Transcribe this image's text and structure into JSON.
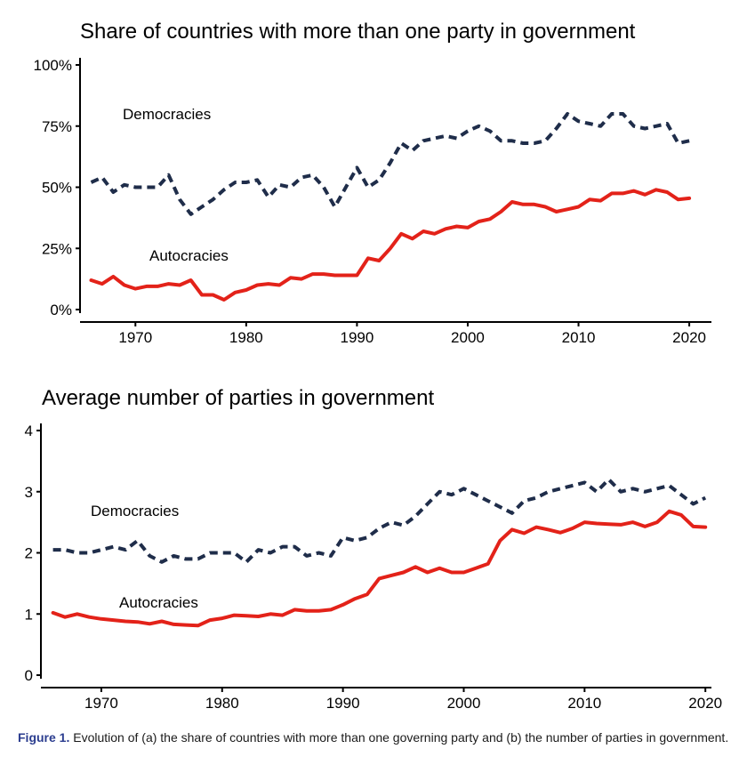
{
  "chart_data": [
    {
      "type": "line",
      "title": "Share of countries with more than one party in government",
      "xlim": [
        1965,
        2022
      ],
      "ylim": [
        0,
        100
      ],
      "x_ticks": [
        1970,
        1980,
        1990,
        2000,
        2010,
        2020
      ],
      "y_ticks": [
        0,
        25,
        50,
        75,
        100
      ],
      "y_tick_labels": [
        "0%",
        "25%",
        "50%",
        "75%",
        "100%"
      ],
      "series": [
        {
          "name": "Democracies",
          "style": "dashed",
          "color": "#1f2d4a",
          "x": [
            1966,
            1967,
            1968,
            1969,
            1970,
            1971,
            1972,
            1973,
            1974,
            1975,
            1976,
            1977,
            1978,
            1979,
            1980,
            1981,
            1982,
            1983,
            1984,
            1985,
            1986,
            1987,
            1988,
            1989,
            1990,
            1991,
            1992,
            1993,
            1994,
            1995,
            1996,
            1997,
            1998,
            1999,
            2000,
            2001,
            2002,
            2003,
            2004,
            2005,
            2006,
            2007,
            2008,
            2009,
            2010,
            2011,
            2012,
            2013,
            2014,
            2015,
            2016,
            2017,
            2018,
            2019,
            2020
          ],
          "values": [
            52,
            54,
            48,
            51,
            50,
            50,
            50,
            55,
            45,
            39,
            42,
            45,
            49,
            52,
            52,
            53,
            46,
            51,
            50,
            54,
            55,
            50,
            42,
            50,
            58,
            50,
            53,
            60,
            68,
            65,
            69,
            70,
            71,
            70,
            73,
            75,
            73,
            69,
            69,
            68,
            68,
            69,
            74,
            80,
            77,
            76,
            75,
            80,
            80,
            75,
            74,
            75,
            76,
            68,
            69
          ]
        },
        {
          "name": "Autocracies",
          "style": "solid",
          "color": "#e32219",
          "x": [
            1966,
            1967,
            1968,
            1969,
            1970,
            1971,
            1972,
            1973,
            1974,
            1975,
            1976,
            1977,
            1978,
            1979,
            1980,
            1981,
            1982,
            1983,
            1984,
            1985,
            1986,
            1987,
            1988,
            1989,
            1990,
            1991,
            1992,
            1993,
            1994,
            1995,
            1996,
            1997,
            1998,
            1999,
            2000,
            2001,
            2002,
            2003,
            2004,
            2005,
            2006,
            2007,
            2008,
            2009,
            2010,
            2011,
            2012,
            2013,
            2014,
            2015,
            2016,
            2017,
            2018,
            2019,
            2020
          ],
          "values": [
            12,
            10.5,
            13.5,
            10,
            8.5,
            9.5,
            9.5,
            10.5,
            10,
            12,
            6,
            6,
            4,
            7,
            8,
            10,
            10.5,
            10,
            13,
            12.5,
            14.5,
            14.5,
            14,
            14,
            14,
            21,
            20,
            25,
            31,
            29,
            32,
            31,
            33,
            34,
            33.5,
            36,
            37,
            40,
            44,
            43,
            43,
            42,
            40,
            41,
            42,
            45,
            44.5,
            47.5,
            47.5,
            48.5,
            47,
            49,
            48,
            45,
            45.5
          ]
        }
      ],
      "annotations": [
        "Democracies",
        "Autocracies"
      ]
    },
    {
      "type": "line",
      "title": "Average number of parties in government",
      "xlim": [
        1965,
        2020.5
      ],
      "ylim": [
        0,
        4
      ],
      "x_ticks": [
        1970,
        1980,
        1990,
        2000,
        2010,
        2020
      ],
      "y_ticks": [
        0,
        1,
        2,
        3,
        4
      ],
      "y_tick_labels": [
        "0",
        "1",
        "2",
        "3",
        "4"
      ],
      "series": [
        {
          "name": "Democracies",
          "style": "dashed",
          "color": "#1f2d4a",
          "x": [
            1966,
            1967,
            1968,
            1969,
            1970,
            1971,
            1972,
            1973,
            1974,
            1975,
            1976,
            1977,
            1978,
            1979,
            1980,
            1981,
            1982,
            1983,
            1984,
            1985,
            1986,
            1987,
            1988,
            1989,
            1990,
            1991,
            1992,
            1993,
            1994,
            1995,
            1996,
            1997,
            1998,
            1999,
            2000,
            2001,
            2002,
            2003,
            2004,
            2005,
            2006,
            2007,
            2008,
            2009,
            2010,
            2011,
            2012,
            2013,
            2014,
            2015,
            2016,
            2017,
            2018,
            2019,
            2020
          ],
          "values": [
            2.05,
            2.05,
            2.0,
            2.0,
            2.05,
            2.1,
            2.05,
            2.2,
            1.95,
            1.85,
            1.95,
            1.9,
            1.9,
            2.0,
            2.0,
            2.0,
            1.85,
            2.05,
            2.0,
            2.1,
            2.1,
            1.95,
            2.0,
            1.95,
            2.25,
            2.2,
            2.25,
            2.4,
            2.5,
            2.45,
            2.6,
            2.8,
            3.0,
            2.95,
            3.05,
            2.95,
            2.85,
            2.75,
            2.65,
            2.85,
            2.9,
            3.0,
            3.05,
            3.1,
            3.15,
            3.0,
            3.2,
            3.0,
            3.05,
            3.0,
            3.05,
            3.1,
            2.95,
            2.8,
            2.9
          ]
        },
        {
          "name": "Autocracies",
          "style": "solid",
          "color": "#e32219",
          "x": [
            1966,
            1967,
            1968,
            1969,
            1970,
            1971,
            1972,
            1973,
            1974,
            1975,
            1976,
            1977,
            1978,
            1979,
            1980,
            1981,
            1982,
            1983,
            1984,
            1985,
            1986,
            1987,
            1988,
            1989,
            1990,
            1991,
            1992,
            1993,
            1994,
            1995,
            1996,
            1997,
            1998,
            1999,
            2000,
            2001,
            2002,
            2003,
            2004,
            2005,
            2006,
            2007,
            2008,
            2009,
            2010,
            2011,
            2012,
            2013,
            2014,
            2015,
            2016,
            2017,
            2018,
            2019,
            2020
          ],
          "values": [
            1.02,
            0.95,
            1.0,
            0.95,
            0.92,
            0.9,
            0.88,
            0.87,
            0.84,
            0.88,
            0.83,
            0.82,
            0.81,
            0.9,
            0.93,
            0.98,
            0.97,
            0.96,
            1.0,
            0.98,
            1.07,
            1.05,
            1.05,
            1.07,
            1.15,
            1.25,
            1.32,
            1.58,
            1.63,
            1.68,
            1.77,
            1.68,
            1.75,
            1.68,
            1.68,
            1.75,
            1.82,
            2.2,
            2.38,
            2.32,
            2.42,
            2.38,
            2.33,
            2.4,
            2.5,
            2.48,
            2.47,
            2.46,
            2.5,
            2.43,
            2.5,
            2.68,
            2.62,
            2.43,
            2.42
          ]
        }
      ],
      "annotations": [
        "Democracies",
        "Autocracies"
      ]
    }
  ],
  "caption": {
    "label": "Figure 1.",
    "text": " Evolution of (a) the share of countries with more than one governing party and (b) the number of parties in government."
  }
}
